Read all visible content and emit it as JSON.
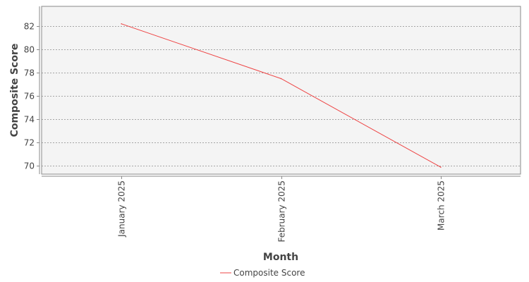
{
  "chart_data": {
    "type": "line",
    "categories": [
      "January 2025",
      "February 2025",
      "March 2025"
    ],
    "series": [
      {
        "name": "Composite Score",
        "values": [
          82.2,
          77.5,
          69.9
        ],
        "color": "#ee4444"
      }
    ],
    "xlabel": "Month",
    "ylabel": "Composite Score",
    "ylim": [
      69.3,
      83.7
    ],
    "yticks": [
      70,
      72,
      74,
      76,
      78,
      80,
      82
    ],
    "grid": true,
    "legend": "bottom-center",
    "colors": {
      "plot_background": "#f4f4f4",
      "grid": "#8a8a8a",
      "frame": "#888888",
      "text": "#444444"
    }
  }
}
